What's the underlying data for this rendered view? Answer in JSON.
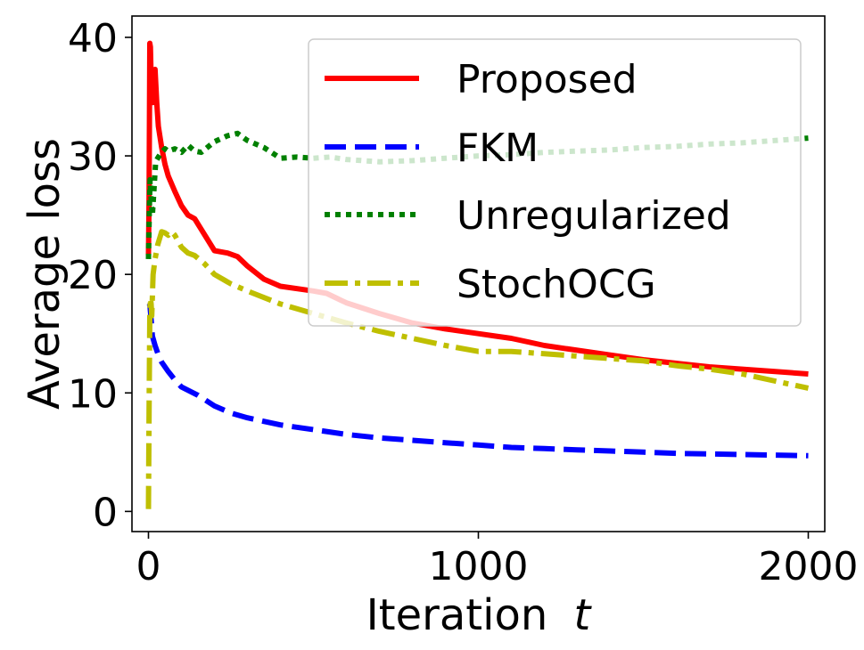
{
  "chart_data": {
    "type": "line",
    "title": "",
    "xlabel": "Iteration",
    "xlabel_var": "t",
    "ylabel": "Average loss",
    "xlim": [
      -50,
      2050
    ],
    "ylim": [
      -1.7,
      41.8
    ],
    "xticks": [
      0,
      1000,
      2000
    ],
    "xtick_labels": [
      "0",
      "1000",
      "2000"
    ],
    "yticks": [
      0,
      10,
      20,
      30,
      40
    ],
    "ytick_labels": [
      "0",
      "10",
      "20",
      "30",
      "40"
    ],
    "grid": false,
    "legend_position": "top-right",
    "series": [
      {
        "name": "Proposed",
        "color": "#ff0000",
        "style": "solid",
        "x": [
          0,
          2,
          4,
          6,
          8,
          10,
          14,
          20,
          25,
          30,
          40,
          50,
          60,
          80,
          100,
          120,
          140,
          160,
          200,
          240,
          270,
          300,
          350,
          400,
          500,
          540,
          600,
          700,
          800,
          900,
          1000,
          1050,
          1100,
          1200,
          1300,
          1400,
          1500,
          1600,
          1700,
          1800,
          1900,
          2000
        ],
        "y": [
          21.6,
          26.5,
          39.5,
          39.2,
          36.5,
          35.8,
          34.5,
          37.3,
          34.5,
          32.5,
          30.7,
          29.3,
          28.3,
          27.0,
          25.8,
          25.0,
          24.7,
          23.8,
          22.0,
          21.8,
          21.5,
          20.7,
          19.6,
          19.0,
          18.6,
          18.4,
          17.6,
          16.7,
          15.9,
          15.4,
          15.0,
          14.8,
          14.6,
          14.0,
          13.6,
          13.2,
          12.8,
          12.5,
          12.2,
          12.0,
          11.8,
          11.6
        ]
      },
      {
        "name": "FKM",
        "color": "#0000ff",
        "style": "dashed",
        "x": [
          0,
          4,
          8,
          12,
          20,
          30,
          40,
          60,
          80,
          100,
          150,
          200,
          250,
          300,
          400,
          500,
          600,
          700,
          800,
          900,
          1000,
          1100,
          1200,
          1300,
          1400,
          1500,
          1600,
          1700,
          1800,
          1900,
          2000
        ],
        "y": [
          17.6,
          17.5,
          16.2,
          14.8,
          14.0,
          13.2,
          12.6,
          11.8,
          11.1,
          10.5,
          9.8,
          8.9,
          8.3,
          7.9,
          7.3,
          6.9,
          6.5,
          6.2,
          6.0,
          5.8,
          5.6,
          5.4,
          5.3,
          5.2,
          5.1,
          5.0,
          4.9,
          4.85,
          4.8,
          4.75,
          4.7
        ]
      },
      {
        "name": "Unregularized",
        "color": "#008000",
        "style": "dotted",
        "x": [
          0,
          3,
          5,
          8,
          12,
          16,
          22,
          30,
          40,
          50,
          60,
          80,
          100,
          120,
          140,
          160,
          200,
          240,
          270,
          300,
          350,
          400,
          450,
          500,
          550,
          600,
          700,
          800,
          900,
          1000,
          1100,
          1200,
          1300,
          1400,
          1500,
          1600,
          1700,
          1800,
          1900,
          2000
        ],
        "y": [
          21.3,
          25.8,
          28.0,
          26.3,
          25.0,
          26.8,
          29.5,
          29.9,
          30.3,
          30.6,
          30.4,
          30.6,
          30.3,
          30.9,
          30.4,
          30.3,
          31.2,
          31.7,
          31.9,
          31.3,
          30.7,
          29.8,
          29.9,
          29.8,
          29.9,
          29.7,
          29.5,
          29.6,
          29.8,
          30.0,
          30.1,
          30.3,
          30.4,
          30.5,
          30.7,
          30.8,
          31.0,
          31.1,
          31.3,
          31.5
        ]
      },
      {
        "name": "StochOCG",
        "color": "#bfbf00",
        "style": "dashdot",
        "x": [
          0,
          2,
          4,
          6,
          8,
          10,
          14,
          20,
          28,
          40,
          50,
          60,
          70,
          80,
          100,
          120,
          140,
          170,
          200,
          250,
          300,
          400,
          500,
          600,
          700,
          800,
          900,
          1000,
          1100,
          1200,
          1300,
          1400,
          1500,
          1600,
          1700,
          1800,
          1900,
          2000
        ],
        "y": [
          0.2,
          8.5,
          16.5,
          18.0,
          17.5,
          16.5,
          20.0,
          21.3,
          22.5,
          23.6,
          23.5,
          23.3,
          23.6,
          23.3,
          22.3,
          21.8,
          21.6,
          20.9,
          20.0,
          19.2,
          18.6,
          17.5,
          16.7,
          15.9,
          15.2,
          14.6,
          14.0,
          13.5,
          13.5,
          13.3,
          13.1,
          12.9,
          12.7,
          12.3,
          12.0,
          11.6,
          11.0,
          10.4
        ]
      }
    ]
  }
}
